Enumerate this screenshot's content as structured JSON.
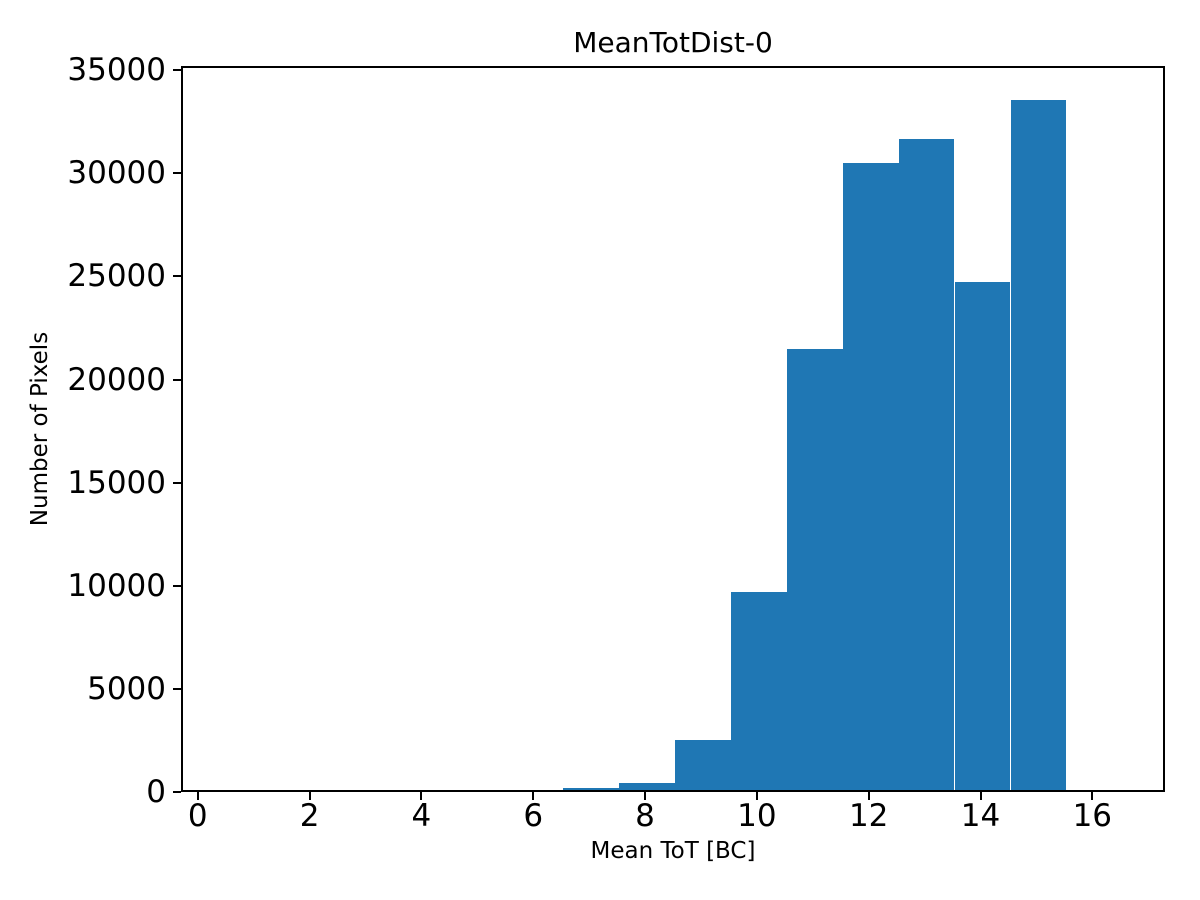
{
  "figure": {
    "title": "MeanTotDist-0",
    "xlabel": "Mean ToT [BC]",
    "ylabel": "Number of Pixels"
  },
  "chart_data": {
    "type": "bar",
    "subtype": "histogram",
    "title": "MeanTotDist-0",
    "xlabel": "Mean ToT [BC]",
    "ylabel": "Number of Pixels",
    "bin_edges": [
      6.5,
      7.5,
      8.5,
      9.5,
      10.5,
      11.5,
      12.5,
      13.5,
      14.5,
      15.5
    ],
    "counts": [
      100,
      330,
      2440,
      9590,
      21400,
      30390,
      31580,
      24630,
      33480
    ],
    "xticks": [
      0,
      2,
      4,
      6,
      8,
      10,
      12,
      14,
      16
    ],
    "yticks": [
      0,
      5000,
      10000,
      15000,
      20000,
      25000,
      30000,
      35000
    ],
    "xlim": [
      -0.3,
      17.3
    ],
    "ylim": [
      0,
      35200
    ],
    "bar_color": "#1f77b4",
    "axis_color": "#000000",
    "background_color": "#ffffff",
    "grid": false,
    "legend_position": "none"
  }
}
